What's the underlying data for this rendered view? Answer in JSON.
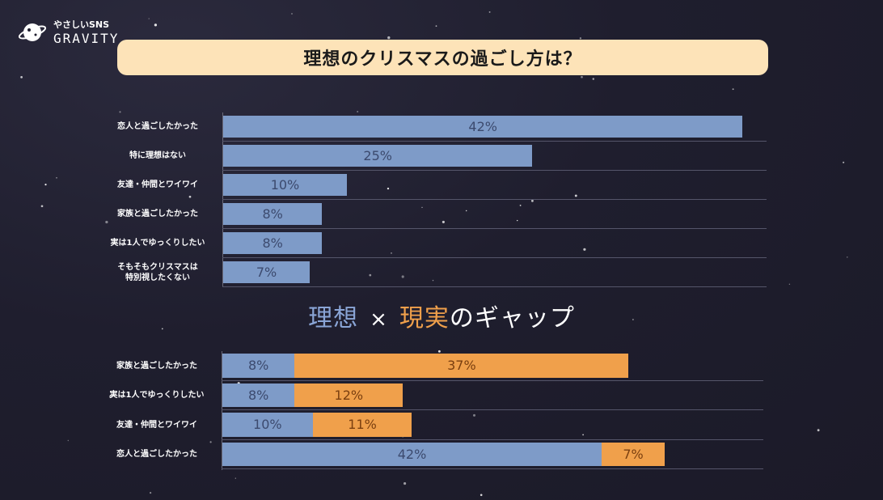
{
  "brand": {
    "tagline": "やさしいSNS",
    "name": "GRAVITY"
  },
  "title": "理想のクリスマスの過ごし方は？",
  "gap_title": {
    "ideal": "理想",
    "times": "×",
    "reality": "現実",
    "rest": "のギャップ"
  },
  "colors": {
    "ideal": "#7e9bc8",
    "reality": "#f0a04b",
    "title_bg": "#fde3b8"
  },
  "chart_data": [
    {
      "type": "bar",
      "orientation": "horizontal",
      "categories": [
        "恋人と過ごしたかった",
        "特に理想はない",
        "友達・仲間とワイワイ",
        "家族と過ごしたかった",
        "実は1人でゆっくりしたい",
        "そもそもクリスマスは\n特別視したくない"
      ],
      "values": [
        42,
        25,
        10,
        8,
        8,
        7
      ],
      "labels": [
        "42%",
        "25%",
        "10%",
        "8%",
        "8%",
        "7%"
      ],
      "xlim": [
        0,
        44
      ]
    },
    {
      "type": "bar",
      "orientation": "horizontal",
      "stacked": true,
      "categories": [
        "家族と過ごしたかった",
        "実は1人でゆっくりしたい",
        "友達・仲間とワイワイ",
        "恋人と過ごしたかった"
      ],
      "series": [
        {
          "values": [
            8,
            8,
            10,
            42
          ],
          "labels": [
            "8%",
            "8%",
            "10%",
            "42%"
          ]
        },
        {
          "values": [
            37,
            12,
            11,
            7
          ],
          "labels": [
            "37%",
            "12%",
            "11%",
            "7%"
          ]
        }
      ],
      "xlim": [
        0,
        60
      ]
    }
  ]
}
